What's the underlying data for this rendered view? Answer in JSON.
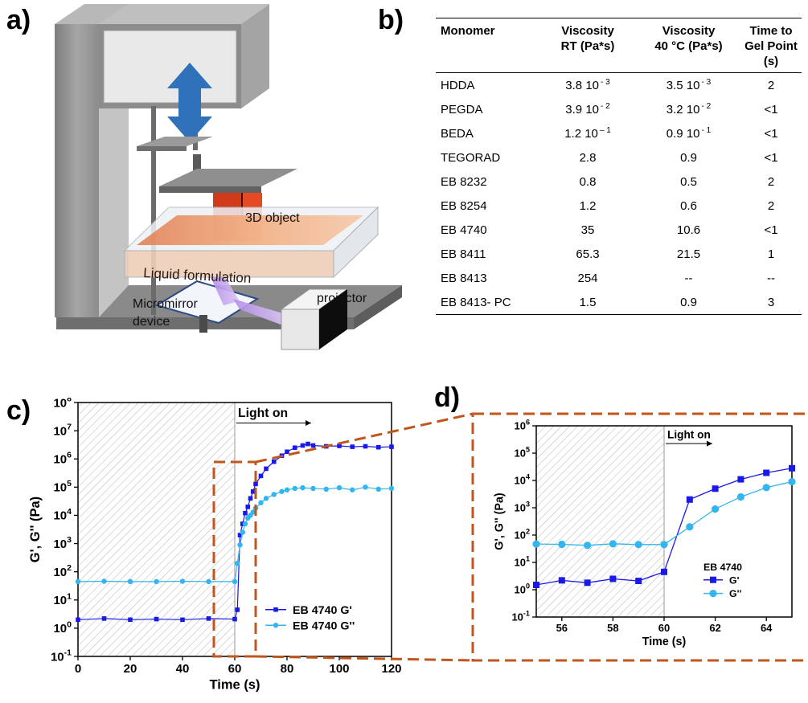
{
  "panels": {
    "a": "a)",
    "b": "b)",
    "c": "c)",
    "d": "d)"
  },
  "printer": {
    "label_object": "3D object",
    "label_liquid": "Liquid formulation",
    "label_projector": "projector",
    "label_mirror_1": "Micromirror",
    "label_mirror_2": "device"
  },
  "table": {
    "headers": [
      {
        "line1": "Monomer",
        "line2": "",
        "line3": ""
      },
      {
        "line1": "Viscosity",
        "line2": "RT (Pa*s)",
        "line3": ""
      },
      {
        "line1": "Viscosity",
        "line2": "40 °C (Pa*s)",
        "line3": ""
      },
      {
        "line1": "Time to",
        "line2": "Gel Point",
        "line3": "(s)"
      }
    ],
    "rows": [
      {
        "monomer": "HDDA",
        "rt": "3.8 10",
        "rt_exp": "- 3",
        "c40": "3.5 10",
        "c40_exp": "- 3",
        "gel": "2"
      },
      {
        "monomer": "PEGDA",
        "rt": "3.9 10",
        "rt_exp": "- 2",
        "c40": "3.2 10",
        "c40_exp": "- 2",
        "gel": "<1"
      },
      {
        "monomer": "BEDA",
        "rt": "1.2 10",
        "rt_exp": "– 1",
        "c40": "0.9 10",
        "c40_exp": "- 1",
        "gel": "<1"
      },
      {
        "monomer": "TEGORAD",
        "rt": "2.8",
        "rt_exp": "",
        "c40": "0.9",
        "c40_exp": "",
        "gel": "<1"
      },
      {
        "monomer": "EB 8232",
        "rt": "0.8",
        "rt_exp": "",
        "c40": "0.5",
        "c40_exp": "",
        "gel": "2"
      },
      {
        "monomer": "EB 8254",
        "rt": "1.2",
        "rt_exp": "",
        "c40": "0.6",
        "c40_exp": "",
        "gel": "2"
      },
      {
        "monomer": "EB 4740",
        "rt": "35",
        "rt_exp": "",
        "c40": "10.6",
        "c40_exp": "",
        "gel": "<1"
      },
      {
        "monomer": "EB 8411",
        "rt": "65.3",
        "rt_exp": "",
        "c40": "21.5",
        "c40_exp": "",
        "gel": "1"
      },
      {
        "monomer": "EB 8413",
        "rt": "254",
        "rt_exp": "",
        "c40": "--",
        "c40_exp": "",
        "gel": "--"
      },
      {
        "monomer": "EB 8413- PC",
        "rt": "1.5",
        "rt_exp": "",
        "c40": "0.9",
        "c40_exp": "",
        "gel": "3"
      }
    ]
  },
  "colors": {
    "g_prime": "#1a1ae6",
    "g_double": "#33b5ef",
    "zoom_box": "#c0561c",
    "hatch": "#b5b5b5"
  },
  "chart_data": [
    {
      "id": "c",
      "type": "scatter",
      "title": "",
      "xlabel": "Time (s)",
      "ylabel": "G', G'' (Pa)",
      "xlim": [
        0,
        120
      ],
      "ylim_exp": [
        -1,
        8
      ],
      "yscale": "log",
      "xticks": [
        0,
        20,
        40,
        60,
        80,
        100,
        120
      ],
      "annotation": "Light on",
      "light_on_x": 60,
      "legend_position": "bottom-right",
      "series": [
        {
          "name": "EB 4740 G'",
          "marker": "square",
          "color": "#1a1ae6",
          "x": [
            0,
            10,
            20,
            30,
            40,
            50,
            60,
            61,
            62,
            63,
            64,
            65,
            66,
            67,
            68,
            70,
            72,
            75,
            78,
            80,
            83,
            86,
            88,
            90,
            95,
            100,
            105,
            110,
            115,
            120
          ],
          "y": [
            2,
            2.2,
            2,
            2.1,
            2,
            2.2,
            2.1,
            4.5,
            2000,
            5000,
            12000,
            20000,
            40000,
            70000,
            130000,
            250000,
            450000,
            800000,
            1300000,
            1800000,
            2500000,
            3000000,
            3400000,
            3000000,
            2800000,
            2900000,
            2700000,
            2800000,
            2600000,
            2700000
          ]
        },
        {
          "name": "EB 4740 G''",
          "marker": "circle",
          "color": "#33b5ef",
          "x": [
            0,
            10,
            20,
            30,
            40,
            50,
            60,
            61,
            62,
            63,
            64,
            65,
            66,
            67,
            68,
            70,
            72,
            75,
            78,
            80,
            83,
            86,
            90,
            95,
            100,
            105,
            110,
            115,
            120
          ],
          "y": [
            45,
            46,
            45,
            45,
            46,
            45,
            45,
            200,
            900,
            2500,
            5000,
            8000,
            10000,
            13000,
            18000,
            28000,
            40000,
            55000,
            70000,
            80000,
            90000,
            95000,
            90000,
            85000,
            95000,
            80000,
            100000,
            85000,
            90000
          ]
        }
      ]
    },
    {
      "id": "d",
      "type": "line",
      "title": "",
      "xlabel": "Time (s)",
      "ylabel": "G', G'' (Pa)",
      "xlim": [
        55,
        65
      ],
      "ylim_exp": [
        -1,
        6
      ],
      "yscale": "log",
      "xticks": [
        56,
        58,
        60,
        62,
        64
      ],
      "annotation": "Light on",
      "light_on_x": 60,
      "legend_title": "EB 4740",
      "legend_position": "right",
      "series": [
        {
          "name": "G'",
          "marker": "square",
          "color": "#1a1ae6",
          "x": [
            55,
            56,
            57,
            58,
            59,
            60,
            61,
            62,
            63,
            64,
            65
          ],
          "y": [
            1.5,
            2.2,
            1.8,
            2.5,
            2.1,
            4.5,
            2000,
            5000,
            11000,
            19000,
            28000
          ]
        },
        {
          "name": "G''",
          "marker": "circle",
          "color": "#33b5ef",
          "x": [
            55,
            56,
            57,
            58,
            59,
            60,
            61,
            62,
            63,
            64,
            65
          ],
          "y": [
            47,
            46,
            42,
            48,
            45,
            45,
            200,
            900,
            2500,
            5500,
            9000
          ]
        }
      ]
    }
  ]
}
